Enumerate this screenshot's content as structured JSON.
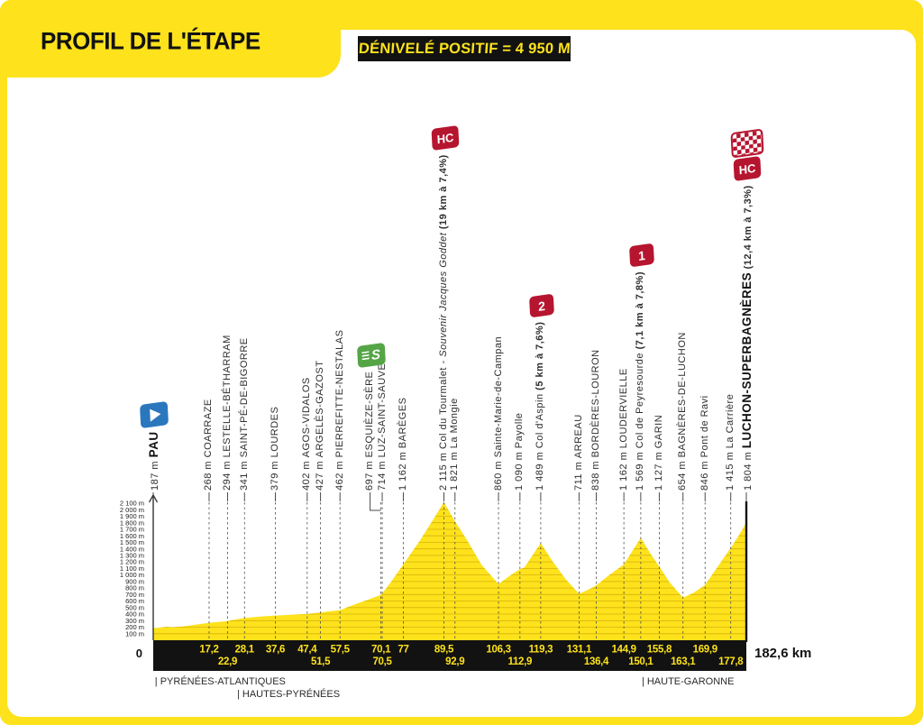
{
  "header": {
    "title": "PROFIL DE L'ÉTAPE",
    "banner": "DÉNIVELÉ POSITIF = 4 950 M"
  },
  "axis": {
    "start_km_label": "0",
    "end_km_label": "182,6 km",
    "elevation_ticks": [
      "2 100 m",
      "2 000 m",
      "1 900 m",
      "1 800 m",
      "1 700 m",
      "1 600 m",
      "1 500 m",
      "1 400 m",
      "1 300 m",
      "1 200 m",
      "1 100 m",
      "1 000 m",
      "900 m",
      "800 m",
      "700 m",
      "600 m",
      "500 m",
      "400 m",
      "300 m",
      "200 m",
      "100 m"
    ]
  },
  "regions": [
    {
      "label": "| PYRÉNÉES-ATLANTIQUES",
      "start_km": 0.5,
      "row": 1
    },
    {
      "label": "| HAUTES-PYRÉNÉES",
      "start_km": 25.8,
      "row": 2
    },
    {
      "label": "| HAUTE-GARONNE",
      "start_km": 150.4,
      "row": 1
    }
  ],
  "badge_glyphs": {
    "hc": "HC",
    "cat1": "1",
    "cat2": "2",
    "sprint": "S"
  },
  "colors": {
    "yellow": "#FDE21C",
    "black": "#121212",
    "red": "#B6152F",
    "green": "#55A546",
    "blue": "#2B77BD",
    "grid": "#C49A00",
    "dash": "#4A4A4A",
    "label_text": "#2E2E2E"
  },
  "chart_data": {
    "type": "area",
    "title": "Profil de l'étape Pau → Luchon-Superbagnères",
    "x_unit": "km",
    "y_unit": "m",
    "x_range": [
      0,
      182.6
    ],
    "y_range": [
      0,
      2100
    ],
    "y_gridline_step_m": 100,
    "total_km": 182.6,
    "positive_elevation_m": 4950,
    "waypoints": [
      {
        "km": 0,
        "elevation_m": 187,
        "elevation_label": "187 m",
        "name": "PAU",
        "style": "start",
        "badge": "start"
      },
      {
        "km": 17.2,
        "elevation_m": 268,
        "elevation_label": "268 m",
        "name": "COARRAZE",
        "style": "upper",
        "km_label": "17,2",
        "row": 1
      },
      {
        "km": 22.9,
        "elevation_m": 294,
        "elevation_label": "294 m",
        "name": "LESTELLE-BÉTHARRAM",
        "style": "upper",
        "km_label": "22,9",
        "row": 2
      },
      {
        "km": 28.1,
        "elevation_m": 341,
        "elevation_label": "341 m",
        "name": "SAINT-PÉ-DE-BIGORRE",
        "style": "upper",
        "km_label": "28,1",
        "row": 1
      },
      {
        "km": 37.6,
        "elevation_m": 379,
        "elevation_label": "379 m",
        "name": "LOURDES",
        "style": "upper",
        "km_label": "37,6",
        "row": 1
      },
      {
        "km": 47.4,
        "elevation_m": 402,
        "elevation_label": "402 m",
        "name": "AGOS-VIDALOS",
        "style": "upper",
        "km_label": "47,4",
        "row": 1
      },
      {
        "km": 51.5,
        "elevation_m": 427,
        "elevation_label": "427 m",
        "name": "ARGELÈS-GAZOST",
        "style": "upper",
        "km_label": "51,5",
        "row": 2
      },
      {
        "km": 57.5,
        "elevation_m": 462,
        "elevation_label": "462 m",
        "name": "PIERREFITTE-NESTALAS",
        "style": "upper",
        "km_label": "57,5",
        "row": 1
      },
      {
        "km": 70.1,
        "elevation_m": 697,
        "elevation_label": "697 m",
        "name": "ESQUIÈZE-SÈRE",
        "style": "upper",
        "badge": "sprint",
        "km_label": "70,1",
        "row": 1
      },
      {
        "km": 70.5,
        "elevation_m": 714,
        "elevation_label": "714 m",
        "name": "LUZ-SAINT-SAUVEUR",
        "style": "upper",
        "km_label": "70,5",
        "row": 2
      },
      {
        "km": 77,
        "elevation_m": 1162,
        "elevation_label": "1 162 m",
        "name": "BARÈGES",
        "style": "upper",
        "km_label": "77",
        "row": 1
      },
      {
        "km": 89.5,
        "elevation_m": 2115,
        "elevation_label": "2 115 m",
        "name": "Col du Tourmalet",
        "style": "mixed",
        "badge": "hc",
        "note_italic": " - Souvenir Jacques Goddet",
        "note_bold": " (19 km à 7,4%)",
        "km_label": "89,5",
        "row": 1
      },
      {
        "km": 92.9,
        "elevation_m": 1821,
        "elevation_label": "1 821 m",
        "name": "La Mongie",
        "style": "mixed",
        "km_label": "92,9",
        "row": 2
      },
      {
        "km": 106.3,
        "elevation_m": 860,
        "elevation_label": "860 m",
        "name": "Sainte-Marie-de-Campan",
        "style": "mixed",
        "km_label": "106,3",
        "row": 1
      },
      {
        "km": 112.9,
        "elevation_m": 1090,
        "elevation_label": "1 090 m",
        "name": "Payolle",
        "style": "mixed",
        "km_label": "112,9",
        "row": 2
      },
      {
        "km": 119.3,
        "elevation_m": 1489,
        "elevation_label": "1 489 m",
        "name": "Col d'Aspin",
        "style": "mixed",
        "badge": "cat2",
        "note_bold": " (5 km à 7,6%)",
        "km_label": "119,3",
        "row": 1
      },
      {
        "km": 131.1,
        "elevation_m": 711,
        "elevation_label": "711 m",
        "name": "ARREAU",
        "style": "upper",
        "km_label": "131,1",
        "row": 1
      },
      {
        "km": 136.4,
        "elevation_m": 838,
        "elevation_label": "838 m",
        "name": "BORDÈRES-LOURON",
        "style": "upper",
        "km_label": "136,4",
        "row": 2
      },
      {
        "km": 144.9,
        "elevation_m": 1162,
        "elevation_label": "1 162 m",
        "name": "LOUDERVIELLE",
        "style": "upper",
        "km_label": "144,9",
        "row": 1
      },
      {
        "km": 150.1,
        "elevation_m": 1569,
        "elevation_label": "1 569 m",
        "name": "Col de Peyresourde",
        "style": "mixed",
        "badge": "cat1",
        "note_bold": " (7,1 km à 7,8%)",
        "km_label": "150,1",
        "row": 2
      },
      {
        "km": 155.8,
        "elevation_m": 1127,
        "elevation_label": "1 127 m",
        "name": "GARIN",
        "style": "upper",
        "km_label": "155,8",
        "row": 1
      },
      {
        "km": 163.1,
        "elevation_m": 654,
        "elevation_label": "654 m",
        "name": "BAGNÈRES-DE-LUCHON",
        "style": "upper",
        "km_label": "163,1",
        "row": 2
      },
      {
        "km": 169.9,
        "elevation_m": 846,
        "elevation_label": "846 m",
        "name": "Pont de Ravi",
        "style": "mixed",
        "km_label": "169,9",
        "row": 1
      },
      {
        "km": 177.8,
        "elevation_m": 1415,
        "elevation_label": "1 415 m",
        "name": "La Carrière",
        "style": "mixed",
        "km_label": "177,8",
        "row": 2
      },
      {
        "km": 182.6,
        "elevation_m": 1804,
        "elevation_label": "1 804 m",
        "name": "LUCHON-SUPERBAGNÈRES",
        "style": "finish",
        "badge": "finish",
        "note_bold": " (12,4 km à 7,3%)"
      }
    ],
    "profile": [
      [
        0,
        187
      ],
      [
        2,
        193
      ],
      [
        4,
        206
      ],
      [
        6,
        200
      ],
      [
        9,
        212
      ],
      [
        12,
        232
      ],
      [
        14.5,
        248
      ],
      [
        17.2,
        268
      ],
      [
        20,
        281
      ],
      [
        22.9,
        294
      ],
      [
        25.3,
        316
      ],
      [
        28.1,
        341
      ],
      [
        31,
        354
      ],
      [
        34,
        366
      ],
      [
        37.6,
        379
      ],
      [
        40.5,
        386
      ],
      [
        44,
        395
      ],
      [
        47.4,
        402
      ],
      [
        49.5,
        414
      ],
      [
        51.5,
        427
      ],
      [
        54.3,
        443
      ],
      [
        57.5,
        462
      ],
      [
        60,
        510
      ],
      [
        63,
        566
      ],
      [
        66,
        618
      ],
      [
        68.5,
        666
      ],
      [
        70.1,
        697
      ],
      [
        70.5,
        714
      ],
      [
        73,
        880
      ],
      [
        77,
        1162
      ],
      [
        82,
        1520
      ],
      [
        86,
        1835
      ],
      [
        89.5,
        2115
      ],
      [
        92.9,
        1821
      ],
      [
        97,
        1505
      ],
      [
        101,
        1160
      ],
      [
        106.3,
        860
      ],
      [
        109.5,
        980
      ],
      [
        112.9,
        1090
      ],
      [
        114.3,
        1118
      ],
      [
        119.3,
        1489
      ],
      [
        123,
        1205
      ],
      [
        127,
        935
      ],
      [
        131.1,
        711
      ],
      [
        133.5,
        765
      ],
      [
        136.4,
        838
      ],
      [
        140,
        985
      ],
      [
        144.9,
        1162
      ],
      [
        150.1,
        1569
      ],
      [
        153,
        1335
      ],
      [
        155.8,
        1127
      ],
      [
        159,
        885
      ],
      [
        163.1,
        654
      ],
      [
        166.2,
        722
      ],
      [
        169.9,
        846
      ],
      [
        173.2,
        1085
      ],
      [
        177.8,
        1415
      ],
      [
        180.2,
        1600
      ],
      [
        182.6,
        1804
      ]
    ]
  }
}
